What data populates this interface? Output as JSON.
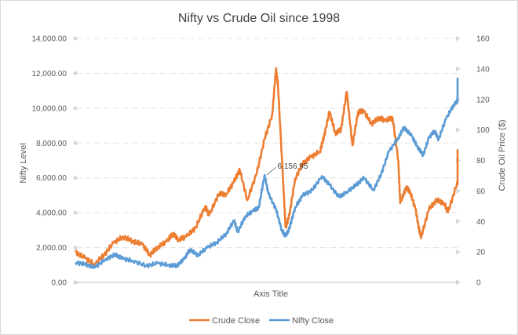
{
  "chart_data": {
    "type": "line",
    "title": "Nifty vs Crude Oil since 1998",
    "xlabel": "Axis Title",
    "ylabel_left": "Nifty Level",
    "ylabel_right": "Crude Oil Price ($)",
    "y_left": {
      "min": 0,
      "max": 14000,
      "step": 2000,
      "ticks": [
        "0.00",
        "2,000.00",
        "4,000.00",
        "6,000.00",
        "8,000.00",
        "10,000.00",
        "12,000.00",
        "14,000.00"
      ]
    },
    "y_right": {
      "min": 0,
      "max": 160,
      "step": 20,
      "ticks": [
        "0",
        "20",
        "40",
        "60",
        "80",
        "100",
        "120",
        "140",
        "160"
      ]
    },
    "x": {
      "min": 1998.0,
      "max": 2018.0
    },
    "legend_position": "bottom",
    "gridlines": true,
    "annotation": {
      "label": "6,156.95",
      "series": "Nifty Close",
      "x": 2008.0,
      "y": 6156.95
    },
    "series": [
      {
        "name": "Crude Close",
        "axis": "right",
        "color": "#ED7D31",
        "points": [
          [
            1998.0,
            20
          ],
          [
            1998.5,
            16
          ],
          [
            1999.0,
            12
          ],
          [
            1999.5,
            18
          ],
          [
            2000.0,
            26
          ],
          [
            2000.5,
            30
          ],
          [
            2001.0,
            27
          ],
          [
            2001.5,
            25
          ],
          [
            2001.9,
            18
          ],
          [
            2002.3,
            23
          ],
          [
            2002.8,
            27
          ],
          [
            2003.1,
            32
          ],
          [
            2003.4,
            28
          ],
          [
            2003.8,
            30
          ],
          [
            2004.3,
            36
          ],
          [
            2004.8,
            50
          ],
          [
            2005.0,
            44
          ],
          [
            2005.5,
            58
          ],
          [
            2005.9,
            58
          ],
          [
            2006.3,
            66
          ],
          [
            2006.6,
            74
          ],
          [
            2007.0,
            54
          ],
          [
            2007.5,
            72
          ],
          [
            2007.9,
            94
          ],
          [
            2008.3,
            110
          ],
          [
            2008.5,
            140
          ],
          [
            2008.6,
            130
          ],
          [
            2008.9,
            60
          ],
          [
            2009.0,
            36
          ],
          [
            2009.2,
            44
          ],
          [
            2009.5,
            68
          ],
          [
            2009.9,
            78
          ],
          [
            2010.3,
            82
          ],
          [
            2010.8,
            86
          ],
          [
            2011.0,
            95
          ],
          [
            2011.3,
            112
          ],
          [
            2011.6,
            98
          ],
          [
            2011.9,
            100
          ],
          [
            2012.2,
            125
          ],
          [
            2012.5,
            90
          ],
          [
            2012.8,
            112
          ],
          [
            2013.1,
            112
          ],
          [
            2013.5,
            104
          ],
          [
            2013.9,
            108
          ],
          [
            2014.2,
            106
          ],
          [
            2014.6,
            108
          ],
          [
            2014.9,
            80
          ],
          [
            2015.0,
            52
          ],
          [
            2015.3,
            62
          ],
          [
            2015.5,
            60
          ],
          [
            2015.8,
            48
          ],
          [
            2016.0,
            34
          ],
          [
            2016.1,
            30
          ],
          [
            2016.5,
            48
          ],
          [
            2016.9,
            54
          ],
          [
            2017.3,
            52
          ],
          [
            2017.5,
            46
          ],
          [
            2017.9,
            62
          ],
          [
            2018.3,
            74
          ],
          [
            2018.6,
            78
          ],
          [
            2018.8,
            86
          ],
          [
            2018.95,
            74
          ],
          [
            2019.0,
            84
          ]
        ]
      },
      {
        "name": "Nifty Close",
        "axis": "left",
        "color": "#5B9BD5",
        "points": [
          [
            1998.0,
            1150
          ],
          [
            1998.5,
            1050
          ],
          [
            1999.0,
            850
          ],
          [
            1999.6,
            1350
          ],
          [
            2000.1,
            1600
          ],
          [
            2000.5,
            1350
          ],
          [
            2001.0,
            1250
          ],
          [
            2001.7,
            950
          ],
          [
            2002.3,
            1100
          ],
          [
            2002.9,
            1000
          ],
          [
            2003.3,
            950
          ],
          [
            2003.7,
            1350
          ],
          [
            2004.0,
            1900
          ],
          [
            2004.4,
            1550
          ],
          [
            2004.9,
            2000
          ],
          [
            2005.4,
            2300
          ],
          [
            2005.9,
            2800
          ],
          [
            2006.3,
            3550
          ],
          [
            2006.5,
            2900
          ],
          [
            2006.9,
            3800
          ],
          [
            2007.3,
            4100
          ],
          [
            2007.6,
            4300
          ],
          [
            2007.9,
            6157
          ],
          [
            2008.1,
            5100
          ],
          [
            2008.5,
            4200
          ],
          [
            2008.8,
            3000
          ],
          [
            2009.0,
            2650
          ],
          [
            2009.2,
            3100
          ],
          [
            2009.5,
            4300
          ],
          [
            2009.9,
            5000
          ],
          [
            2010.4,
            5300
          ],
          [
            2010.9,
            6100
          ],
          [
            2011.3,
            5600
          ],
          [
            2011.8,
            4900
          ],
          [
            2012.2,
            5200
          ],
          [
            2012.7,
            5600
          ],
          [
            2013.1,
            6000
          ],
          [
            2013.6,
            5300
          ],
          [
            2014.0,
            6200
          ],
          [
            2014.4,
            7500
          ],
          [
            2014.9,
            8300
          ],
          [
            2015.2,
            8900
          ],
          [
            2015.6,
            8400
          ],
          [
            2015.9,
            7800
          ],
          [
            2016.2,
            7300
          ],
          [
            2016.5,
            8300
          ],
          [
            2016.8,
            8700
          ],
          [
            2017.0,
            8200
          ],
          [
            2017.4,
            9400
          ],
          [
            2017.8,
            10200
          ],
          [
            2018.1,
            10500
          ],
          [
            2018.4,
            10700
          ],
          [
            2018.7,
            11400
          ],
          [
            2018.9,
            11700
          ],
          [
            2019.0,
            10600
          ]
        ]
      }
    ]
  }
}
